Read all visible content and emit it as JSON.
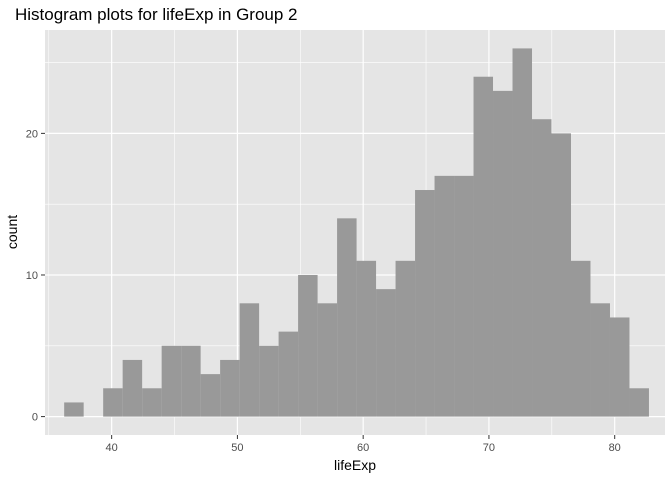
{
  "chart_data": {
    "type": "bar",
    "title": "Histogram plots for lifeExp in Group 2",
    "xlabel": "lifeExp",
    "ylabel": "count",
    "bin_width": 1.55,
    "bins": [
      {
        "x": 37.0,
        "count": 1
      },
      {
        "x": 38.55,
        "count": 0
      },
      {
        "x": 40.1,
        "count": 2
      },
      {
        "x": 41.65,
        "count": 4
      },
      {
        "x": 43.2,
        "count": 2
      },
      {
        "x": 44.75,
        "count": 5
      },
      {
        "x": 46.3,
        "count": 5
      },
      {
        "x": 47.85,
        "count": 3
      },
      {
        "x": 49.4,
        "count": 4
      },
      {
        "x": 50.95,
        "count": 8
      },
      {
        "x": 52.5,
        "count": 5
      },
      {
        "x": 54.05,
        "count": 6
      },
      {
        "x": 55.6,
        "count": 10
      },
      {
        "x": 57.15,
        "count": 8
      },
      {
        "x": 58.7,
        "count": 14
      },
      {
        "x": 60.25,
        "count": 11
      },
      {
        "x": 61.8,
        "count": 9
      },
      {
        "x": 63.35,
        "count": 11
      },
      {
        "x": 64.9,
        "count": 16
      },
      {
        "x": 66.45,
        "count": 17
      },
      {
        "x": 68.0,
        "count": 17
      },
      {
        "x": 69.55,
        "count": 24
      },
      {
        "x": 71.1,
        "count": 23
      },
      {
        "x": 72.65,
        "count": 26
      },
      {
        "x": 74.2,
        "count": 21
      },
      {
        "x": 75.75,
        "count": 20
      },
      {
        "x": 77.3,
        "count": 11
      },
      {
        "x": 78.85,
        "count": 8
      },
      {
        "x": 80.4,
        "count": 7
      },
      {
        "x": 81.95,
        "count": 2
      }
    ],
    "xlim": [
      34.7,
      84.0
    ],
    "ylim": [
      -1.3,
      27.3
    ],
    "x_ticks": [
      40,
      50,
      60,
      70,
      80
    ],
    "y_ticks": [
      0,
      10,
      20
    ],
    "grid": true,
    "colors": {
      "panel": "#e5e5e5",
      "grid_major": "#ffffff",
      "bar_fill": "#999999"
    }
  }
}
